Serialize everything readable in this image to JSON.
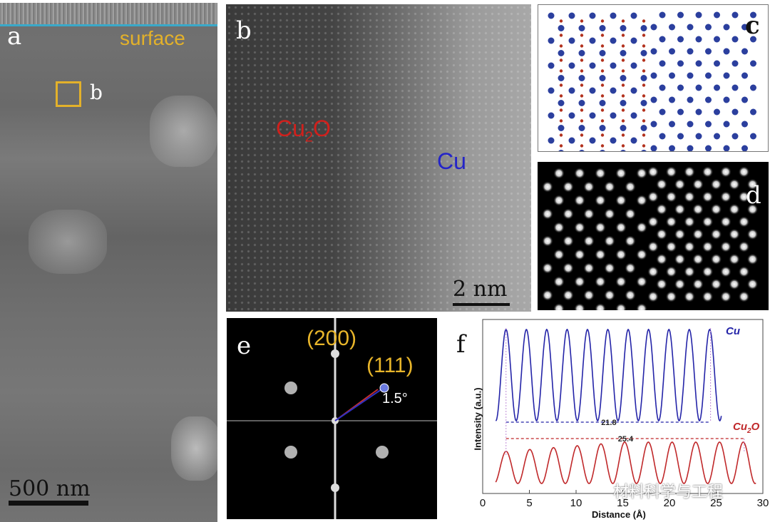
{
  "figure": {
    "panel_a": {
      "label": "a",
      "annotation": "surface",
      "roi_label": "b",
      "scale_bar": "500 nm",
      "colors": {
        "annotation": "#e3b12a",
        "interface_line": "#3aa9c9"
      }
    },
    "panel_b": {
      "label": "b",
      "phase_left": "Cu₂O",
      "phase_right": "Cu",
      "scale_bar": "2 nm",
      "colors": {
        "cu2o": "#d0201c",
        "cu": "#2424c8"
      }
    },
    "panel_c": {
      "label": "c",
      "description": "atomic model, Cu2O (left) / Cu (right)",
      "colors": {
        "cu_atom": "#2b3f9e",
        "o_atom": "#b3321e"
      }
    },
    "panel_d": {
      "label": "d",
      "description": "simulated image"
    },
    "panel_e": {
      "label": "e",
      "spot_200": "(200)",
      "spot_111": "(111)",
      "angle": "1.5°",
      "colors": {
        "labels": "#e8b52a"
      }
    },
    "panel_f": {
      "label": "f"
    },
    "watermark": "材料科学与工程"
  },
  "chart_data": {
    "type": "line",
    "title": "",
    "xlabel": "Distance (Å)",
    "ylabel": "Intensity (a.u.)",
    "xlim": [
      0,
      30
    ],
    "xticks": [
      0,
      5,
      10,
      15,
      20,
      25,
      30
    ],
    "grid": false,
    "series": [
      {
        "name": "Cu",
        "color": "#2424a8",
        "x_range": [
          1.4,
          25.6
        ],
        "peaks_x": [
          2.5,
          4.7,
          6.9,
          9.1,
          11.2,
          13.4,
          15.6,
          17.8,
          20.0,
          22.2,
          24.4
        ],
        "period": 2.18
      },
      {
        "name": "Cu₂O",
        "color": "#c0282a",
        "x_range": [
          1.4,
          29.3
        ],
        "peaks_x": [
          2.5,
          5.0,
          7.6,
          10.1,
          12.7,
          15.2,
          17.8,
          20.3,
          22.9,
          25.4,
          28.0
        ],
        "period": 2.54
      }
    ],
    "annotations": [
      {
        "text": "21.8",
        "from": 2.5,
        "to": 24.4,
        "color": "#2424a8"
      },
      {
        "text": "25.4",
        "from": 2.5,
        "to": 28.0,
        "color": "#c0282a"
      }
    ]
  }
}
